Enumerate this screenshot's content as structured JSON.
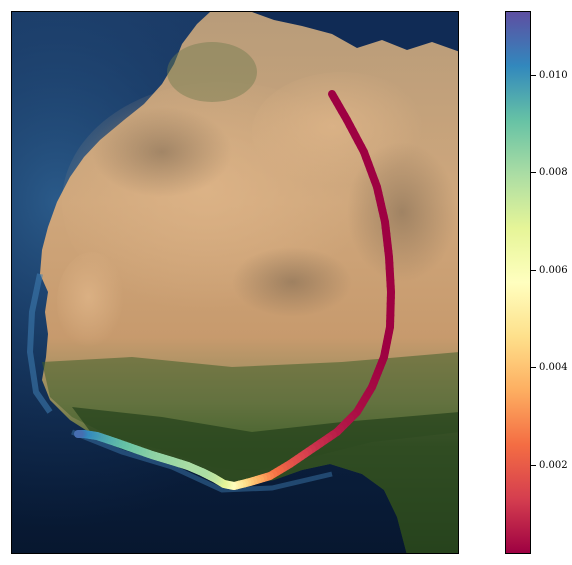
{
  "map": {
    "basemap": "satellite-imagery-west-africa",
    "track_color_low": "#9e0142",
    "track_color_high": "#5e4fa2"
  },
  "colorbar": {
    "colormap": "Spectral",
    "vmin": 0.0002,
    "vmax": 0.0113,
    "ticks": [
      {
        "value": 0.01,
        "label": "0.010"
      },
      {
        "value": 0.008,
        "label": "0.008"
      },
      {
        "value": 0.006,
        "label": "0.006"
      },
      {
        "value": 0.004,
        "label": "0.004"
      },
      {
        "value": 0.002,
        "label": "0.002"
      }
    ]
  }
}
